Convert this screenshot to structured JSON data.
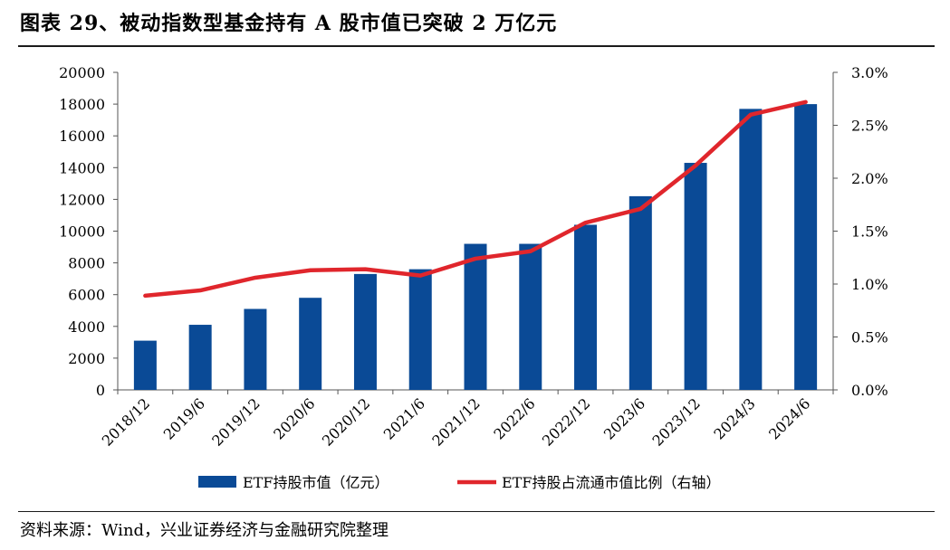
{
  "title": "图表 29、被动指数型基金持有 A 股市值已突破 2 万亿元",
  "source": "资料来源：Wind，兴业证券经济与金融研究院整理",
  "colors": {
    "bar": "#0a4a96",
    "line": "#e0262c",
    "text": "#000000"
  },
  "chart_data": {
    "type": "bar",
    "categories": [
      "2018/12",
      "2019/6",
      "2019/12",
      "2020/6",
      "2020/12",
      "2021/6",
      "2021/12",
      "2022/6",
      "2022/12",
      "2023/6",
      "2023/12",
      "2024/3",
      "2024/6"
    ],
    "series": [
      {
        "name": "ETF持股市值（亿元）",
        "type": "bar",
        "axis": "left",
        "values": [
          3100,
          4100,
          5100,
          5800,
          7300,
          7600,
          9200,
          9200,
          10400,
          12200,
          14300,
          17700,
          18000
        ]
      },
      {
        "name": "ETF持股占流通市值比例（右轴）",
        "type": "line",
        "axis": "right",
        "values": [
          0.89,
          0.94,
          1.06,
          1.13,
          1.14,
          1.08,
          1.24,
          1.31,
          1.58,
          1.71,
          2.12,
          2.6,
          2.72
        ]
      }
    ],
    "y_left": {
      "range": [
        0,
        20000
      ],
      "ticks": [
        "0",
        "2000",
        "4000",
        "6000",
        "8000",
        "10000",
        "12000",
        "14000",
        "16000",
        "18000",
        "20000"
      ]
    },
    "y_right": {
      "range": [
        0,
        3.0
      ],
      "unit": "%",
      "ticks": [
        "0.0%",
        "0.5%",
        "1.0%",
        "1.5%",
        "2.0%",
        "2.5%",
        "3.0%"
      ]
    },
    "legend_position": "bottom",
    "grid": false
  }
}
